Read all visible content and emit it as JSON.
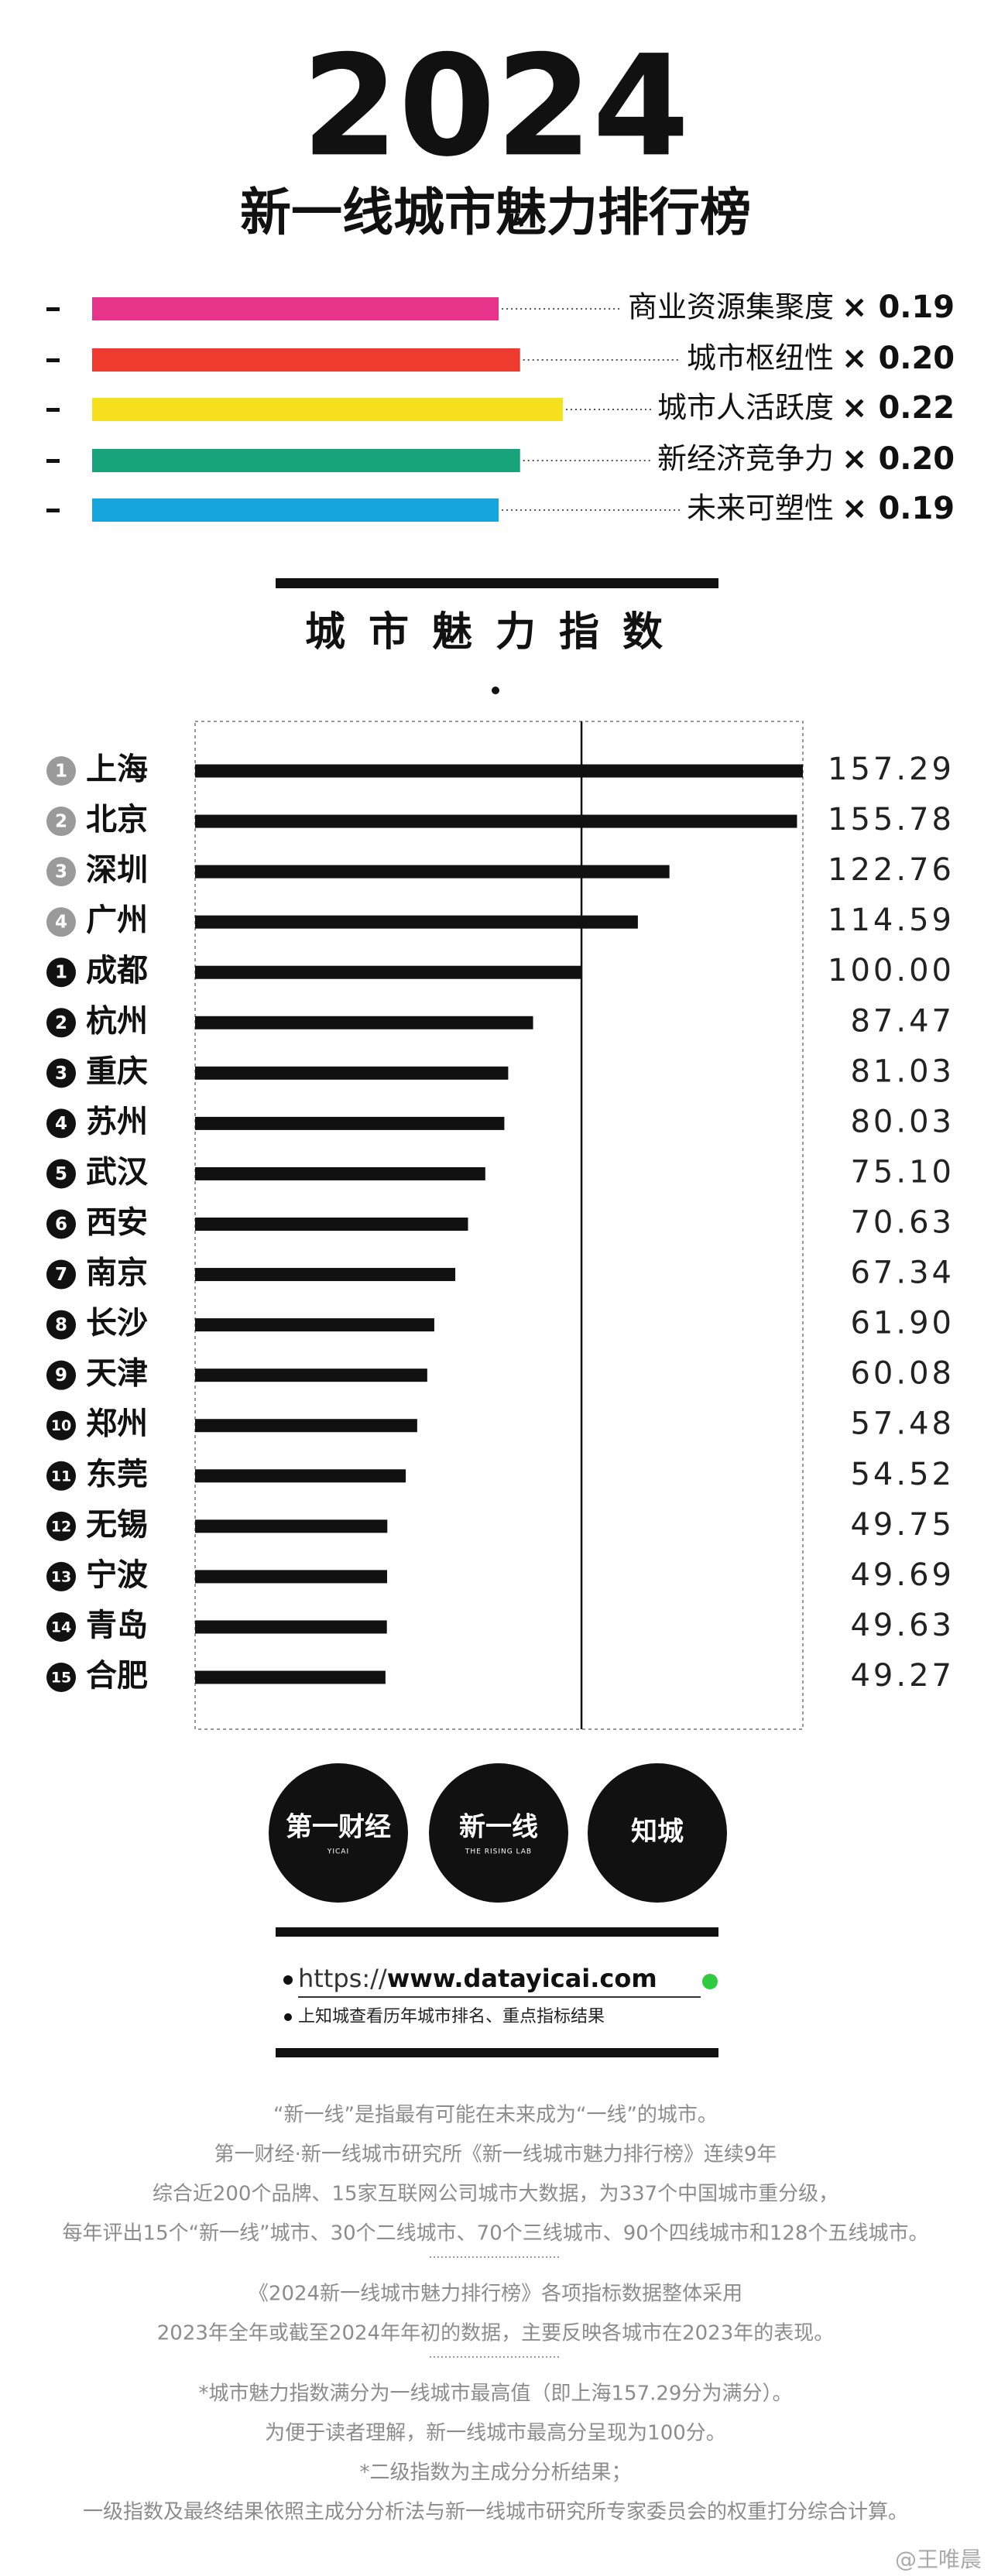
{
  "header": {
    "year": "2024",
    "title": "新一线城市魅力排行榜"
  },
  "chart_data": [
    {
      "type": "weights",
      "categories": [
        "商业资源集聚度",
        "城市枢纽性",
        "城市人活跃度",
        "新经济竞争力",
        "未来可塑性"
      ],
      "values": [
        0.19,
        0.2,
        0.22,
        0.2,
        0.19
      ],
      "value_labels": [
        "× 0.19",
        "× 0.20",
        "× 0.22",
        "× 0.20",
        "× 0.19"
      ],
      "colors": [
        "#e8338b",
        "#ee3b2e",
        "#f6df1c",
        "#17a47a",
        "#17a5dd"
      ],
      "xlim": [
        0,
        0.22
      ]
    },
    {
      "type": "bar",
      "title": "城市魅力指数",
      "categories": [
        "上海",
        "北京",
        "深圳",
        "广州",
        "成都",
        "杭州",
        "重庆",
        "苏州",
        "武汉",
        "西安",
        "南京",
        "长沙",
        "天津",
        "郑州",
        "东莞",
        "无锡",
        "宁波",
        "青岛",
        "合肥"
      ],
      "ranks": [
        "1",
        "2",
        "3",
        "4",
        "1",
        "2",
        "3",
        "4",
        "5",
        "6",
        "7",
        "8",
        "9",
        "10",
        "11",
        "12",
        "13",
        "14",
        "15"
      ],
      "rank_colors": [
        "#9a9a9a",
        "#9a9a9a",
        "#9a9a9a",
        "#9a9a9a",
        "#111111",
        "#111111",
        "#111111",
        "#111111",
        "#111111",
        "#111111",
        "#111111",
        "#111111",
        "#111111",
        "#111111",
        "#111111",
        "#111111",
        "#111111",
        "#111111",
        "#111111"
      ],
      "values": [
        157.29,
        155.78,
        122.76,
        114.59,
        100,
        87.47,
        81.03,
        80.03,
        75.1,
        70.63,
        67.34,
        61.9,
        60.08,
        57.48,
        54.52,
        49.75,
        49.69,
        49.63,
        49.27
      ],
      "value_labels": [
        "157.29",
        "155.78",
        "122.76",
        "114.59",
        "100.00",
        "87.47",
        "81.03",
        "80.03",
        "75.10",
        "70.63",
        "67.34",
        "61.90",
        "60.08",
        "57.48",
        "54.52",
        "49.75",
        "49.69",
        "49.63",
        "49.27"
      ],
      "color": "#111111",
      "xlim": [
        0,
        157.29
      ],
      "reference_line": 100
    }
  ],
  "logos": [
    {
      "name": "第一财经",
      "sub": "YICAI"
    },
    {
      "name": "新一线",
      "sub": "THE RISING LAB"
    },
    {
      "name": "知城"
    }
  ],
  "link": {
    "prefix": "https://",
    "url": "www.datayicai.com",
    "note": "上知城查看历年城市排名、重点指标结果"
  },
  "footer": {
    "paragraphs": [
      [
        "“新一线”是指最有可能在未来成为“一线”的城市。",
        "第一财经·新一线城市研究所《新一线城市魅力排行榜》连续9年",
        "综合近200个品牌、15家互联网公司城市大数据，为337个中国城市重分级，",
        "每年评出15个“新一线”城市、30个二线城市、70个三线城市、90个四线城市和128个五线城市。"
      ],
      [
        "《2024新一线城市魅力排行榜》各项指标数据整体采用",
        "2023年全年或截至2024年年初的数据，主要反映各城市在2023年的表现。"
      ],
      [
        "*城市魅力指数满分为一线城市最高值（即上海157.29分为满分）。",
        "为便于读者理解，新一线城市最高分呈现为100分。",
        "*二级指数为主成分分析结果；",
        "一级指数及最终结果依照主成分分析法与新一线城市研究所专家委员会的权重打分综合计算。"
      ]
    ]
  },
  "watermark": "@王唯晨"
}
